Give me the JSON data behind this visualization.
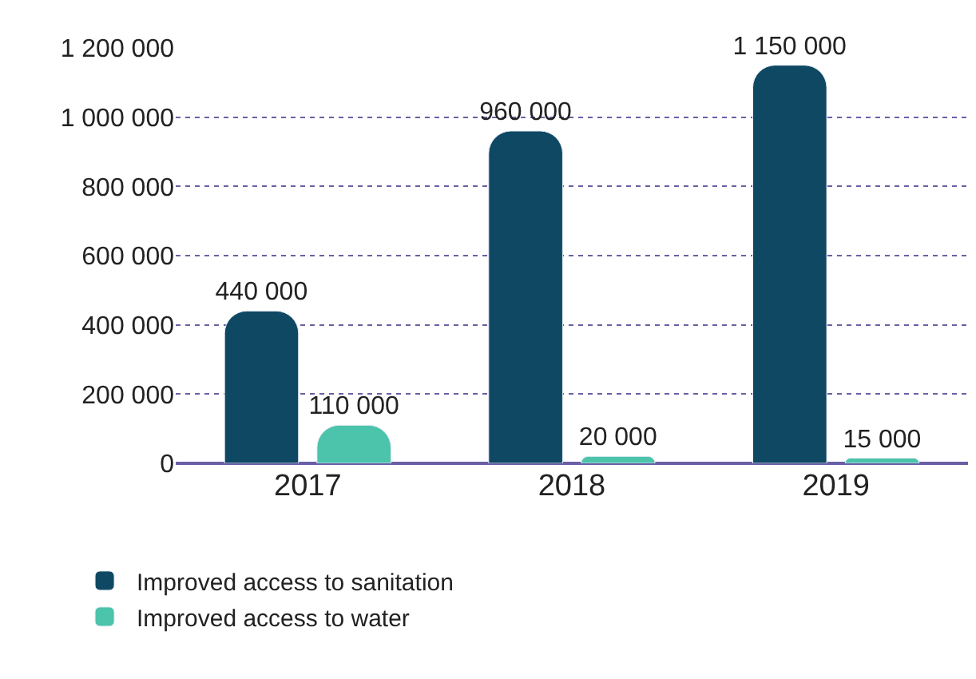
{
  "chart_data": {
    "type": "bar",
    "categories": [
      "2017",
      "2018",
      "2019"
    ],
    "series": [
      {
        "name": "Improved access to sanitation",
        "color": "#0f4862",
        "values": [
          440000,
          960000,
          1150000
        ],
        "value_labels": [
          "440 000",
          "960 000",
          "1 150 000"
        ]
      },
      {
        "name": "Improved access to water",
        "color": "#4cc3ab",
        "values": [
          110000,
          20000,
          15000
        ],
        "value_labels": [
          "110 000",
          "20 000",
          "15 000"
        ]
      }
    ],
    "ylim": [
      0,
      1200000
    ],
    "yticks": [
      {
        "value": 0,
        "label": "0"
      },
      {
        "value": 200000,
        "label": "200 000"
      },
      {
        "value": 400000,
        "label": "400 000"
      },
      {
        "value": 600000,
        "label": "600 000"
      },
      {
        "value": 800000,
        "label": "800 000"
      },
      {
        "value": 1000000,
        "label": "1 000 000"
      },
      {
        "value": 1200000,
        "label": "1 200 000"
      }
    ],
    "grid": "y",
    "legend": "bottom"
  }
}
